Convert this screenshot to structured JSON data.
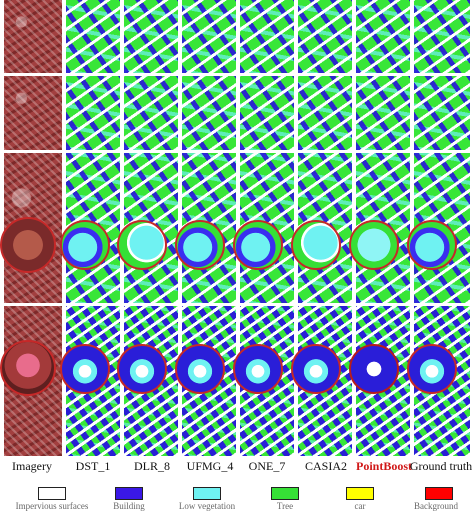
{
  "columns": [
    {
      "label": "Imagery",
      "highlight": false
    },
    {
      "label": "DST_1",
      "highlight": false
    },
    {
      "label": "DLR_8",
      "highlight": false
    },
    {
      "label": "UFMG_4",
      "highlight": false
    },
    {
      "label": "ONE_7",
      "highlight": false
    },
    {
      "label": "CASIA2",
      "highlight": false
    },
    {
      "label": "PointBoost",
      "highlight": true
    },
    {
      "label": "Ground truth",
      "highlight": false
    }
  ],
  "legend": [
    {
      "label": "Impervious surfaces",
      "color": "#ffffff"
    },
    {
      "label": "Building",
      "color": "#3a18e6"
    },
    {
      "label": "Low vegetation",
      "color": "#6ff2f2"
    },
    {
      "label": "Tree",
      "color": "#36e036"
    },
    {
      "label": "car",
      "color": "#ffff00"
    },
    {
      "label": "Background",
      "color": "#ff0000"
    }
  ],
  "colors": {
    "highlight_text": "#d01818",
    "zoom_circle_border": "#c62828",
    "imagery_tint": "#a23f3f"
  }
}
